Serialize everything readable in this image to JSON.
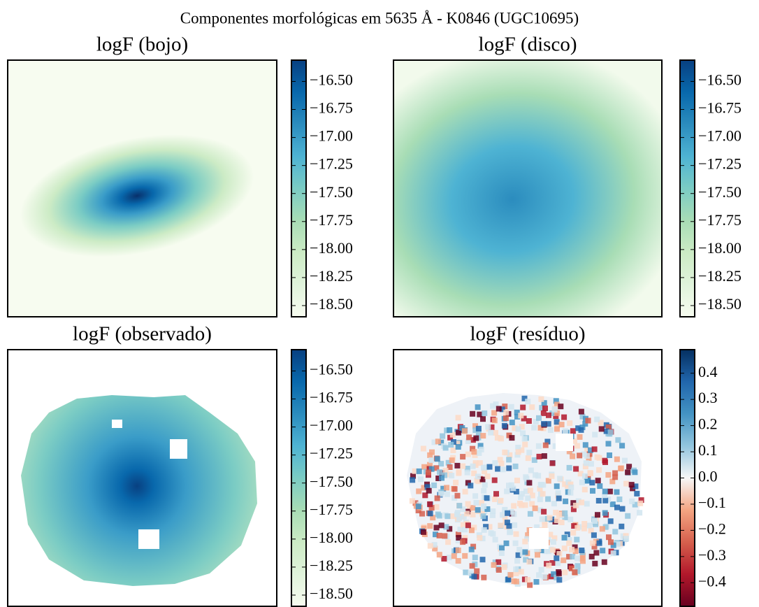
{
  "title": "Componentes morfológicas em 5635 Å - K0846 (UGC10695)",
  "chart_data": [
    {
      "type": "image",
      "title": "logF (bojo)",
      "colormap": "GnBu",
      "clim": [
        -18.6,
        -16.31
      ],
      "colorbar_ticks": [
        {
          "value": -16.5,
          "label": "−16.50"
        },
        {
          "value": -16.75,
          "label": "−16.75"
        },
        {
          "value": -17.0,
          "label": "−17.00"
        },
        {
          "value": -17.25,
          "label": "−17.25"
        },
        {
          "value": -17.5,
          "label": "−17.50"
        },
        {
          "value": -17.75,
          "label": "−17.75"
        },
        {
          "value": -18.0,
          "label": "−18.00"
        },
        {
          "value": -18.25,
          "label": "−18.25"
        },
        {
          "value": -18.5,
          "label": "−18.50"
        }
      ]
    },
    {
      "type": "image",
      "title": "logF (disco)",
      "colormap": "GnBu",
      "clim": [
        -18.6,
        -16.31
      ],
      "colorbar_ticks": [
        {
          "value": -16.5,
          "label": "−16.50"
        },
        {
          "value": -16.75,
          "label": "−16.75"
        },
        {
          "value": -17.0,
          "label": "−17.00"
        },
        {
          "value": -17.25,
          "label": "−17.25"
        },
        {
          "value": -17.5,
          "label": "−17.50"
        },
        {
          "value": -17.75,
          "label": "−17.75"
        },
        {
          "value": -18.0,
          "label": "−18.00"
        },
        {
          "value": -18.25,
          "label": "−18.25"
        },
        {
          "value": -18.5,
          "label": "−18.50"
        }
      ]
    },
    {
      "type": "image",
      "title": "logF (observado)",
      "colormap": "GnBu",
      "clim": [
        -18.6,
        -16.31
      ],
      "colorbar_ticks": [
        {
          "value": -16.5,
          "label": "−16.50"
        },
        {
          "value": -16.75,
          "label": "−16.75"
        },
        {
          "value": -17.0,
          "label": "−17.00"
        },
        {
          "value": -17.25,
          "label": "−17.25"
        },
        {
          "value": -17.5,
          "label": "−17.50"
        },
        {
          "value": -17.75,
          "label": "−17.75"
        },
        {
          "value": -18.0,
          "label": "−18.00"
        },
        {
          "value": -18.25,
          "label": "−18.25"
        },
        {
          "value": -18.5,
          "label": "−18.50"
        }
      ]
    },
    {
      "type": "image",
      "title": "logF (resíduo)",
      "colormap": "RdBu",
      "clim": [
        -0.49,
        0.49
      ],
      "colorbar_ticks": [
        0.4,
        0.3,
        0.2,
        0.1,
        {
          "value": 0,
          "label": "0.0"
        },
        {
          "value": -0.1,
          "label": "−0.1"
        },
        {
          "value": -0.2,
          "label": "−0.2"
        },
        {
          "value": -0.3,
          "label": "−0.3"
        },
        {
          "value": -0.4,
          "label": "−0.4"
        }
      ]
    }
  ]
}
